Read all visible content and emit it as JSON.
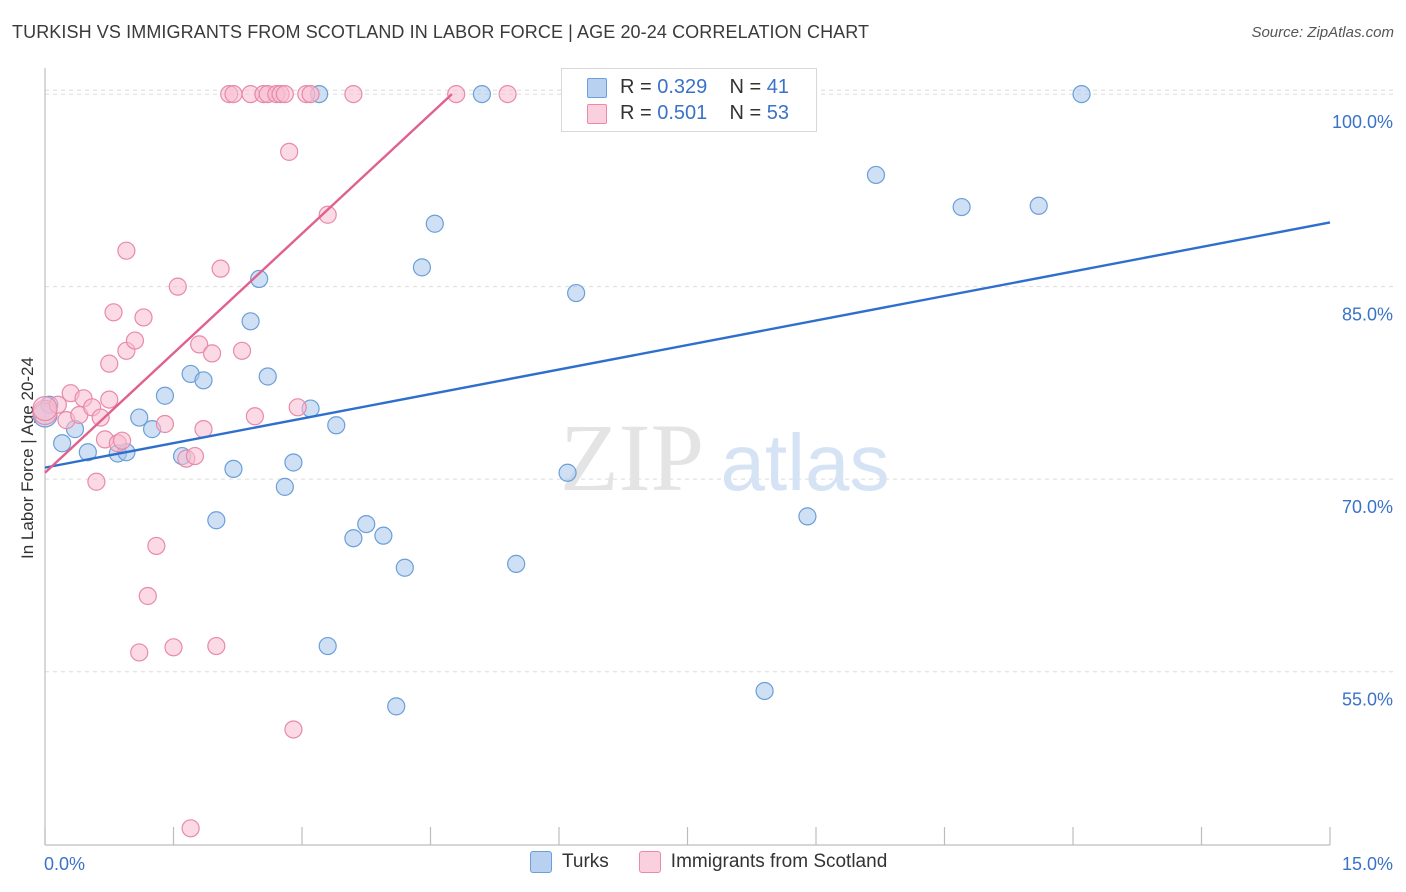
{
  "title": "TURKISH VS IMMIGRANTS FROM SCOTLAND IN LABOR FORCE | AGE 20-24 CORRELATION CHART",
  "source": "Source: ZipAtlas.com",
  "watermark": {
    "zip": "ZIP",
    "atlas": "atlas"
  },
  "legend_top": {
    "turks": {
      "r_label": "R = ",
      "r_value": "0.329",
      "n_label": "N = ",
      "n_value": "41"
    },
    "scotland": {
      "r_label": "R = ",
      "r_value": "0.501",
      "n_label": "N = ",
      "n_value": "53"
    }
  },
  "chart_data": {
    "type": "scatter",
    "title": "TURKISH VS IMMIGRANTS FROM SCOTLAND IN LABOR FORCE | AGE 20-24 CORRELATION CHART",
    "xlabel": "",
    "ylabel": "In Labor Force | Age 20-24",
    "xlim": [
      0,
      15
    ],
    "ylim": [
      41.5,
      102.5
    ],
    "x_tick_labels": [
      "0.0%",
      "15.0%"
    ],
    "y_ticks": [
      55,
      70,
      85,
      100
    ],
    "y_tick_labels": [
      "55.0%",
      "70.0%",
      "85.0%",
      "100.0%"
    ],
    "grid": true,
    "legend_position": "bottom",
    "series": [
      {
        "name": "Turks",
        "color": "#a8c6ec",
        "stroke": "#6a9fd8",
        "trend_color": "#2e6fce",
        "R": 0.329,
        "N": 41,
        "trend": [
          [
            0.0,
            70.9
          ],
          [
            15.0,
            90.0
          ]
        ],
        "points": [
          [
            0.05,
            75.8
          ],
          [
            0.2,
            72.8
          ],
          [
            0.35,
            73.9
          ],
          [
            0.5,
            72.1
          ],
          [
            0.85,
            72.0
          ],
          [
            0.95,
            72.1
          ],
          [
            1.1,
            74.8
          ],
          [
            1.25,
            73.9
          ],
          [
            1.4,
            76.5
          ],
          [
            1.6,
            71.8
          ],
          [
            1.7,
            78.2
          ],
          [
            1.85,
            77.7
          ],
          [
            2.0,
            66.8
          ],
          [
            2.2,
            70.8
          ],
          [
            2.4,
            82.3
          ],
          [
            2.5,
            85.6
          ],
          [
            2.6,
            78.0
          ],
          [
            2.8,
            69.4
          ],
          [
            2.9,
            71.3
          ],
          [
            3.1,
            75.5
          ],
          [
            3.2,
            100.0
          ],
          [
            3.3,
            57.0
          ],
          [
            3.4,
            74.2
          ],
          [
            3.6,
            65.4
          ],
          [
            3.75,
            66.5
          ],
          [
            3.95,
            65.6
          ],
          [
            4.1,
            52.3
          ],
          [
            4.2,
            63.1
          ],
          [
            4.4,
            86.5
          ],
          [
            4.55,
            89.9
          ],
          [
            5.1,
            100.0
          ],
          [
            5.5,
            63.4
          ],
          [
            6.1,
            70.5
          ],
          [
            6.2,
            84.5
          ],
          [
            8.4,
            53.5
          ],
          [
            8.9,
            67.1
          ],
          [
            9.7,
            93.7
          ],
          [
            10.7,
            91.2
          ],
          [
            11.6,
            91.3
          ],
          [
            12.1,
            100.0
          ],
          [
            0.0,
            75.0
          ]
        ]
      },
      {
        "name": "Immigrants from Scotland",
        "color": "#f8bcd0",
        "stroke": "#e88aa8",
        "trend_color": "#e06090",
        "R": 0.501,
        "N": 53,
        "trend": [
          [
            0.0,
            70.5
          ],
          [
            4.75,
            100.0
          ]
        ],
        "points": [
          [
            0.0,
            75.2
          ],
          [
            0.15,
            75.8
          ],
          [
            0.25,
            74.6
          ],
          [
            0.3,
            76.7
          ],
          [
            0.4,
            75.0
          ],
          [
            0.45,
            76.3
          ],
          [
            0.55,
            75.6
          ],
          [
            0.65,
            74.8
          ],
          [
            0.75,
            76.2
          ],
          [
            0.6,
            69.8
          ],
          [
            0.7,
            73.1
          ],
          [
            0.85,
            72.8
          ],
          [
            0.9,
            73.0
          ],
          [
            0.75,
            79.0
          ],
          [
            0.8,
            83.0
          ],
          [
            0.95,
            87.8
          ],
          [
            0.95,
            80.0
          ],
          [
            1.05,
            80.8
          ],
          [
            1.1,
            56.5
          ],
          [
            1.15,
            82.6
          ],
          [
            1.2,
            60.9
          ],
          [
            1.3,
            64.8
          ],
          [
            1.4,
            74.3
          ],
          [
            1.5,
            56.9
          ],
          [
            1.55,
            85.0
          ],
          [
            1.65,
            71.6
          ],
          [
            1.7,
            42.8
          ],
          [
            1.75,
            71.8
          ],
          [
            1.8,
            80.5
          ],
          [
            1.85,
            73.9
          ],
          [
            1.95,
            79.8
          ],
          [
            2.0,
            57.0
          ],
          [
            2.05,
            86.4
          ],
          [
            2.15,
            100.0
          ],
          [
            2.2,
            100.0
          ],
          [
            2.3,
            80.0
          ],
          [
            2.4,
            100.0
          ],
          [
            2.45,
            74.9
          ],
          [
            2.55,
            100.0
          ],
          [
            2.6,
            100.0
          ],
          [
            2.7,
            100.0
          ],
          [
            2.75,
            100.0
          ],
          [
            2.8,
            100.0
          ],
          [
            2.85,
            95.5
          ],
          [
            2.9,
            50.5
          ],
          [
            2.95,
            75.6
          ],
          [
            3.05,
            100.0
          ],
          [
            3.1,
            100.0
          ],
          [
            3.3,
            90.6
          ],
          [
            3.6,
            100.0
          ],
          [
            4.8,
            100.0
          ],
          [
            5.4,
            100.0
          ],
          [
            0.0,
            75.5
          ]
        ]
      }
    ]
  }
}
